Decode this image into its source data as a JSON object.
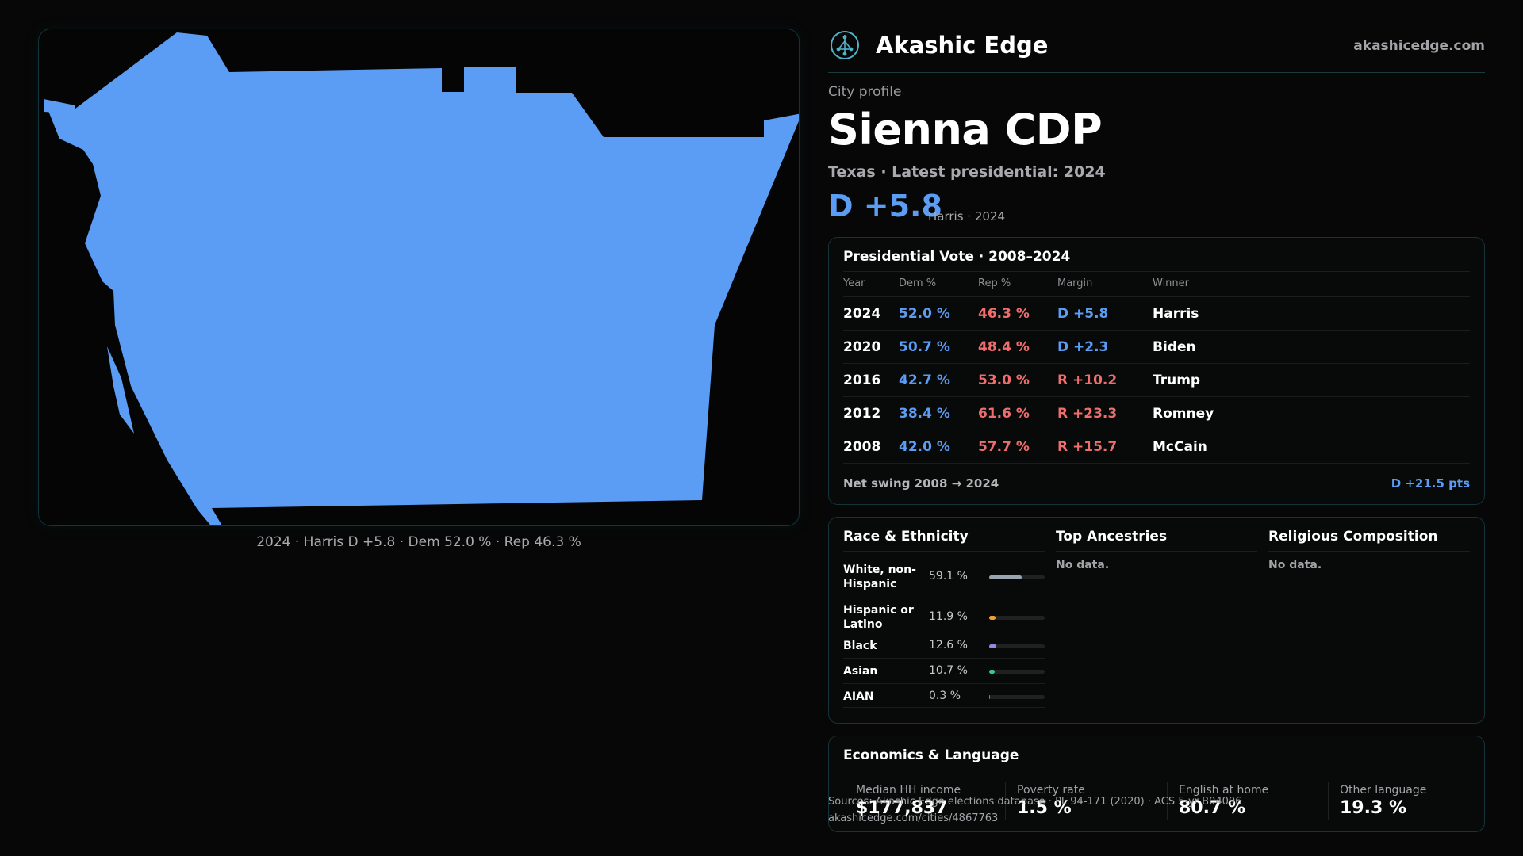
{
  "map": {
    "fill_color": "#5b9cf5",
    "caption": "2024 · Harris D +5.8 · Dem 52.0 % · Rep 46.3 %"
  },
  "header": {
    "logo_icon": "tree-of-life-icon",
    "brand": "Akashic Edge",
    "site": "akashicedge.com"
  },
  "profile": {
    "eyebrow": "City profile",
    "name": "Sienna CDP",
    "subtitle": "Texas · Latest presidential: 2024",
    "margin": "D +5.8",
    "margin_note": "Harris · 2024"
  },
  "presidential": {
    "title": "Presidential Vote · 2008–2024",
    "headers": {
      "year": "Year",
      "dem": "Dem %",
      "rep": "Rep %",
      "margin": "Margin",
      "winner": "Winner"
    },
    "rows": [
      {
        "year": "2024",
        "dem": "52.0 %",
        "rep": "46.3 %",
        "margin": "D +5.8",
        "party": "D",
        "winner": "Harris"
      },
      {
        "year": "2020",
        "dem": "50.7 %",
        "rep": "48.4 %",
        "margin": "D +2.3",
        "party": "D",
        "winner": "Biden"
      },
      {
        "year": "2016",
        "dem": "42.7 %",
        "rep": "53.0 %",
        "margin": "R +10.2",
        "party": "R",
        "winner": "Trump"
      },
      {
        "year": "2012",
        "dem": "38.4 %",
        "rep": "61.6 %",
        "margin": "R +23.3",
        "party": "R",
        "winner": "Romney"
      },
      {
        "year": "2008",
        "dem": "42.0 %",
        "rep": "57.7 %",
        "margin": "R +15.7",
        "party": "R",
        "winner": "McCain"
      }
    ],
    "swing_label": "Net swing 2008 → 2024",
    "swing_value": "D +21.5 pts"
  },
  "race": {
    "title": "Race & Ethnicity",
    "rows": [
      {
        "label": "White, non-Hispanic",
        "pct": "59.1 %",
        "value": 59.1,
        "color": "#9aa3b0"
      },
      {
        "label": "Hispanic or Latino",
        "pct": "11.9 %",
        "value": 11.9,
        "color": "#f0a030"
      },
      {
        "label": "Black",
        "pct": "12.6 %",
        "value": 12.6,
        "color": "#9b86e8"
      },
      {
        "label": "Asian",
        "pct": "10.7 %",
        "value": 10.7,
        "color": "#2fcf8a"
      },
      {
        "label": "AIAN",
        "pct": "0.3 %",
        "value": 0.3,
        "color": "#7a7c80"
      }
    ]
  },
  "ancestries": {
    "title": "Top Ancestries",
    "empty": "No data."
  },
  "religion": {
    "title": "Religious Composition",
    "empty": "No data."
  },
  "economics": {
    "title": "Economics & Language",
    "stats": [
      {
        "label": "Median HH income",
        "value": "$177,837"
      },
      {
        "label": "Poverty rate",
        "value": "1.5 %"
      },
      {
        "label": "English at home",
        "value": "80.7 %"
      },
      {
        "label": "Other language",
        "value": "19.3 %"
      }
    ]
  },
  "footer": {
    "source": "Sources: Akashic Edge elections database · PL 94-171 (2020) · ACS 5-yr B04006",
    "url": "akashicedge.com/cities/4867763"
  }
}
